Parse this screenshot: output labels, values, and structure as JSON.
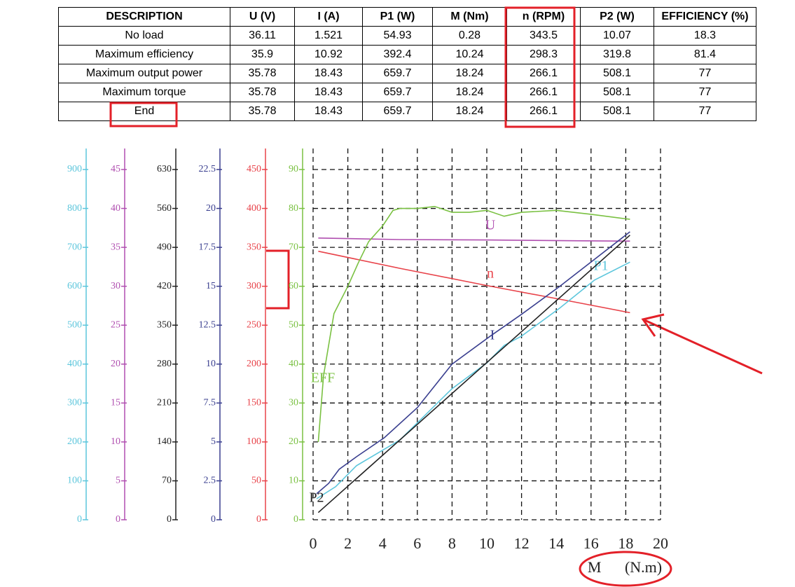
{
  "table": {
    "header": [
      "DESCRIPTION",
      "U (V)",
      "I (A)",
      "P1 (W)",
      "M (Nm)",
      "n (RPM)",
      "P2 (W)",
      "EFFICIENCY (%)"
    ],
    "rows": [
      [
        "No load",
        "36.11",
        "1.521",
        "54.93",
        "0.28",
        "343.5",
        "10.07",
        "18.3"
      ],
      [
        "Maximum efficiency",
        "35.9",
        "10.92",
        "392.4",
        "10.24",
        "298.3",
        "319.8",
        "81.4"
      ],
      [
        "Maximum output power",
        "35.78",
        "18.43",
        "659.7",
        "18.24",
        "266.1",
        "508.1",
        "77"
      ],
      [
        "Maximum torque",
        "35.78",
        "18.43",
        "659.7",
        "18.24",
        "266.1",
        "508.1",
        "77"
      ],
      [
        "End",
        "35.78",
        "18.43",
        "659.7",
        "18.24",
        "266.1",
        "508.1",
        "77"
      ]
    ]
  },
  "chart_data": {
    "type": "line",
    "x_label": "M (N.m)",
    "xlim": [
      0,
      20
    ],
    "xticks": [
      0,
      2,
      4,
      6,
      8,
      10,
      12,
      14,
      16,
      18,
      20
    ],
    "y_axes": [
      {
        "color": "#5cc6dc",
        "ylim": [
          0,
          900
        ],
        "yticks": [
          0,
          100,
          200,
          300,
          400,
          500,
          600,
          700,
          800,
          900
        ]
      },
      {
        "color": "#b04fb0",
        "ylim": [
          0,
          45
        ],
        "yticks": [
          0,
          5,
          10,
          15,
          20,
          25,
          30,
          35,
          40,
          45
        ]
      },
      {
        "color": "#222222",
        "ylim": [
          0,
          630
        ],
        "yticks": [
          0,
          70,
          140,
          210,
          280,
          350,
          420,
          490,
          560,
          630
        ]
      },
      {
        "color": "#3a3f8f",
        "ylim": [
          0,
          22.5
        ],
        "yticks": [
          0,
          2.5,
          5,
          7.5,
          10,
          12.5,
          15,
          17.5,
          20,
          22.5
        ]
      },
      {
        "color": "#e8434a",
        "ylim": [
          0,
          450
        ],
        "yticks": [
          0,
          50,
          100,
          150,
          200,
          250,
          300,
          350,
          400,
          450
        ]
      },
      {
        "color": "#7ac142",
        "ylim": [
          0,
          90
        ],
        "yticks": [
          0,
          10,
          20,
          30,
          40,
          50,
          60,
          70,
          80,
          90
        ],
        "grid": true
      }
    ],
    "series": [
      {
        "name": "U",
        "color": "#b04fb0",
        "axis": 1,
        "x": [
          0.3,
          5,
          10,
          15,
          18.24
        ],
        "values": [
          36.2,
          36.0,
          35.95,
          35.85,
          35.8
        ]
      },
      {
        "name": "n",
        "color": "#e8434a",
        "axis": 4,
        "x": [
          0.3,
          5,
          10,
          15,
          18.24
        ],
        "values": [
          345,
          323,
          301,
          280,
          266
        ]
      },
      {
        "name": "P1",
        "color": "#5cc6dc",
        "axis": 0,
        "x": [
          0.2,
          1.3,
          2.5,
          5,
          8,
          10,
          11,
          12,
          14.2,
          16.2,
          18.24
        ],
        "values": [
          54,
          85,
          139,
          205,
          337,
          403,
          448,
          472,
          544,
          616,
          662
        ]
      },
      {
        "name": "I",
        "color": "#3a3f8f",
        "axis": 3,
        "x": [
          0.2,
          0.9,
          1.5,
          2.5,
          4.1,
          6,
          8,
          10.2,
          12,
          14.2,
          18.24
        ],
        "values": [
          1.67,
          2.34,
          3.24,
          4.05,
          5.27,
          7.2,
          10,
          11.8,
          13.2,
          15.0,
          18.5
        ]
      },
      {
        "name": "EFF",
        "color": "#7ac142",
        "axis": 5,
        "x": [
          0.3,
          0.6,
          1.2,
          2,
          2.6,
          3.2,
          4,
          4.6,
          5,
          6,
          7,
          8,
          9,
          10,
          11,
          12,
          14,
          16,
          18.24
        ],
        "values": [
          20,
          37,
          53,
          60,
          66,
          71.5,
          75.5,
          79.5,
          80,
          80,
          80.5,
          79,
          79,
          79.5,
          78,
          79,
          79.5,
          78.5,
          77.2
        ]
      },
      {
        "name": "P2",
        "color": "#222222",
        "axis": 2,
        "x": [
          0.3,
          18.24
        ],
        "values": [
          13,
          512
        ]
      }
    ]
  }
}
